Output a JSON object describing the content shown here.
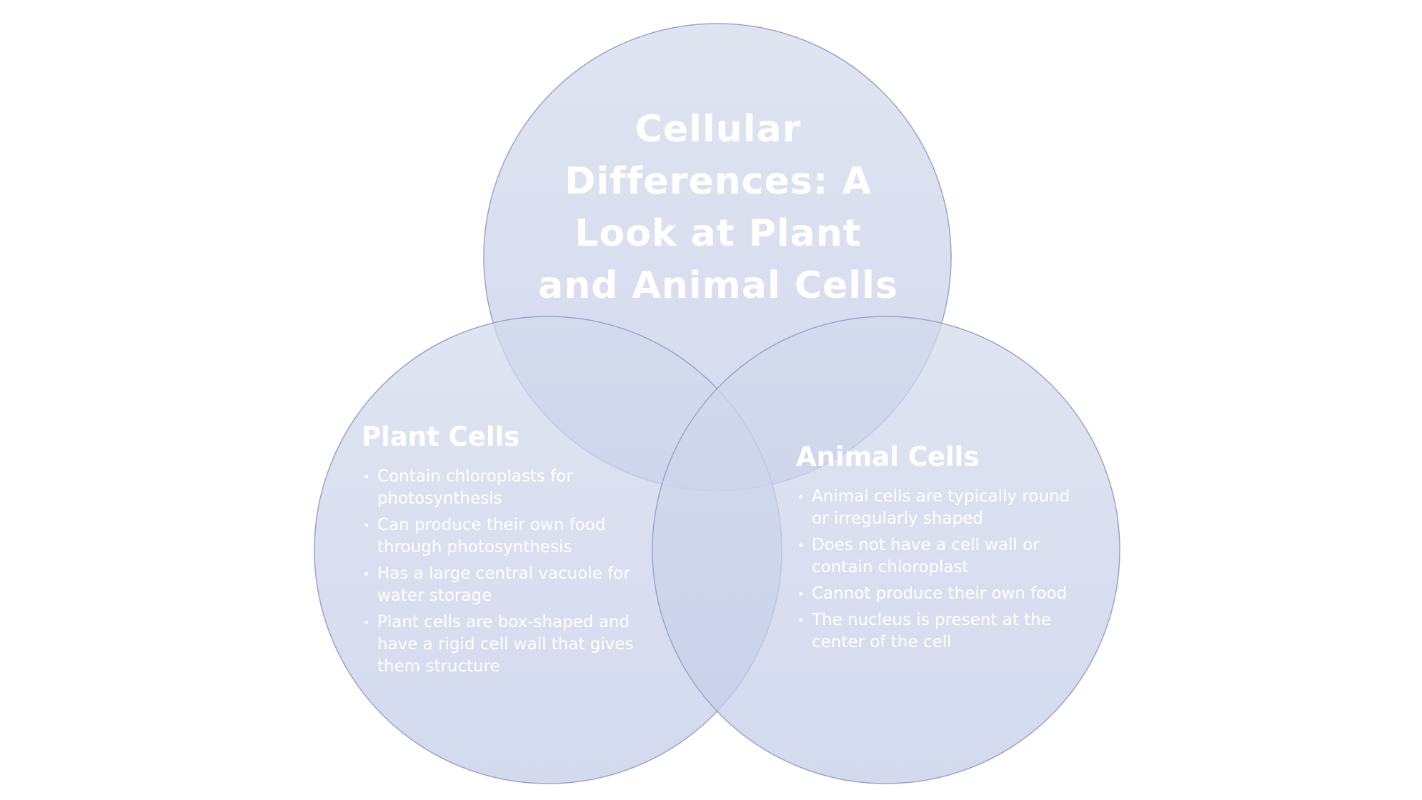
{
  "title": "Cellular\nDifferences: A\nLook at Plant\nand Animal Cells",
  "colors": {
    "circle_fill_top": "#d3daec",
    "circle_fill_bottom": "#c3cce8",
    "circle_stroke": "#9aa4c8",
    "text": "#ffffff"
  },
  "groups": {
    "plant": {
      "heading": "Plant Cells",
      "items": [
        "Contain chloroplasts for photosynthesis",
        "Can produce their own food through photosynthesis",
        "Has a large central vacuole for water storage",
        "Plant cells are box-shaped and have a rigid cell wall that gives them structure"
      ]
    },
    "animal": {
      "heading": "Animal Cells",
      "items": [
        "Animal cells are typically round or irregularly shaped",
        "Does not have a cell wall or contain chloroplast",
        "Cannot produce their own food",
        "The nucleus is present at the center of the cell"
      ]
    }
  }
}
